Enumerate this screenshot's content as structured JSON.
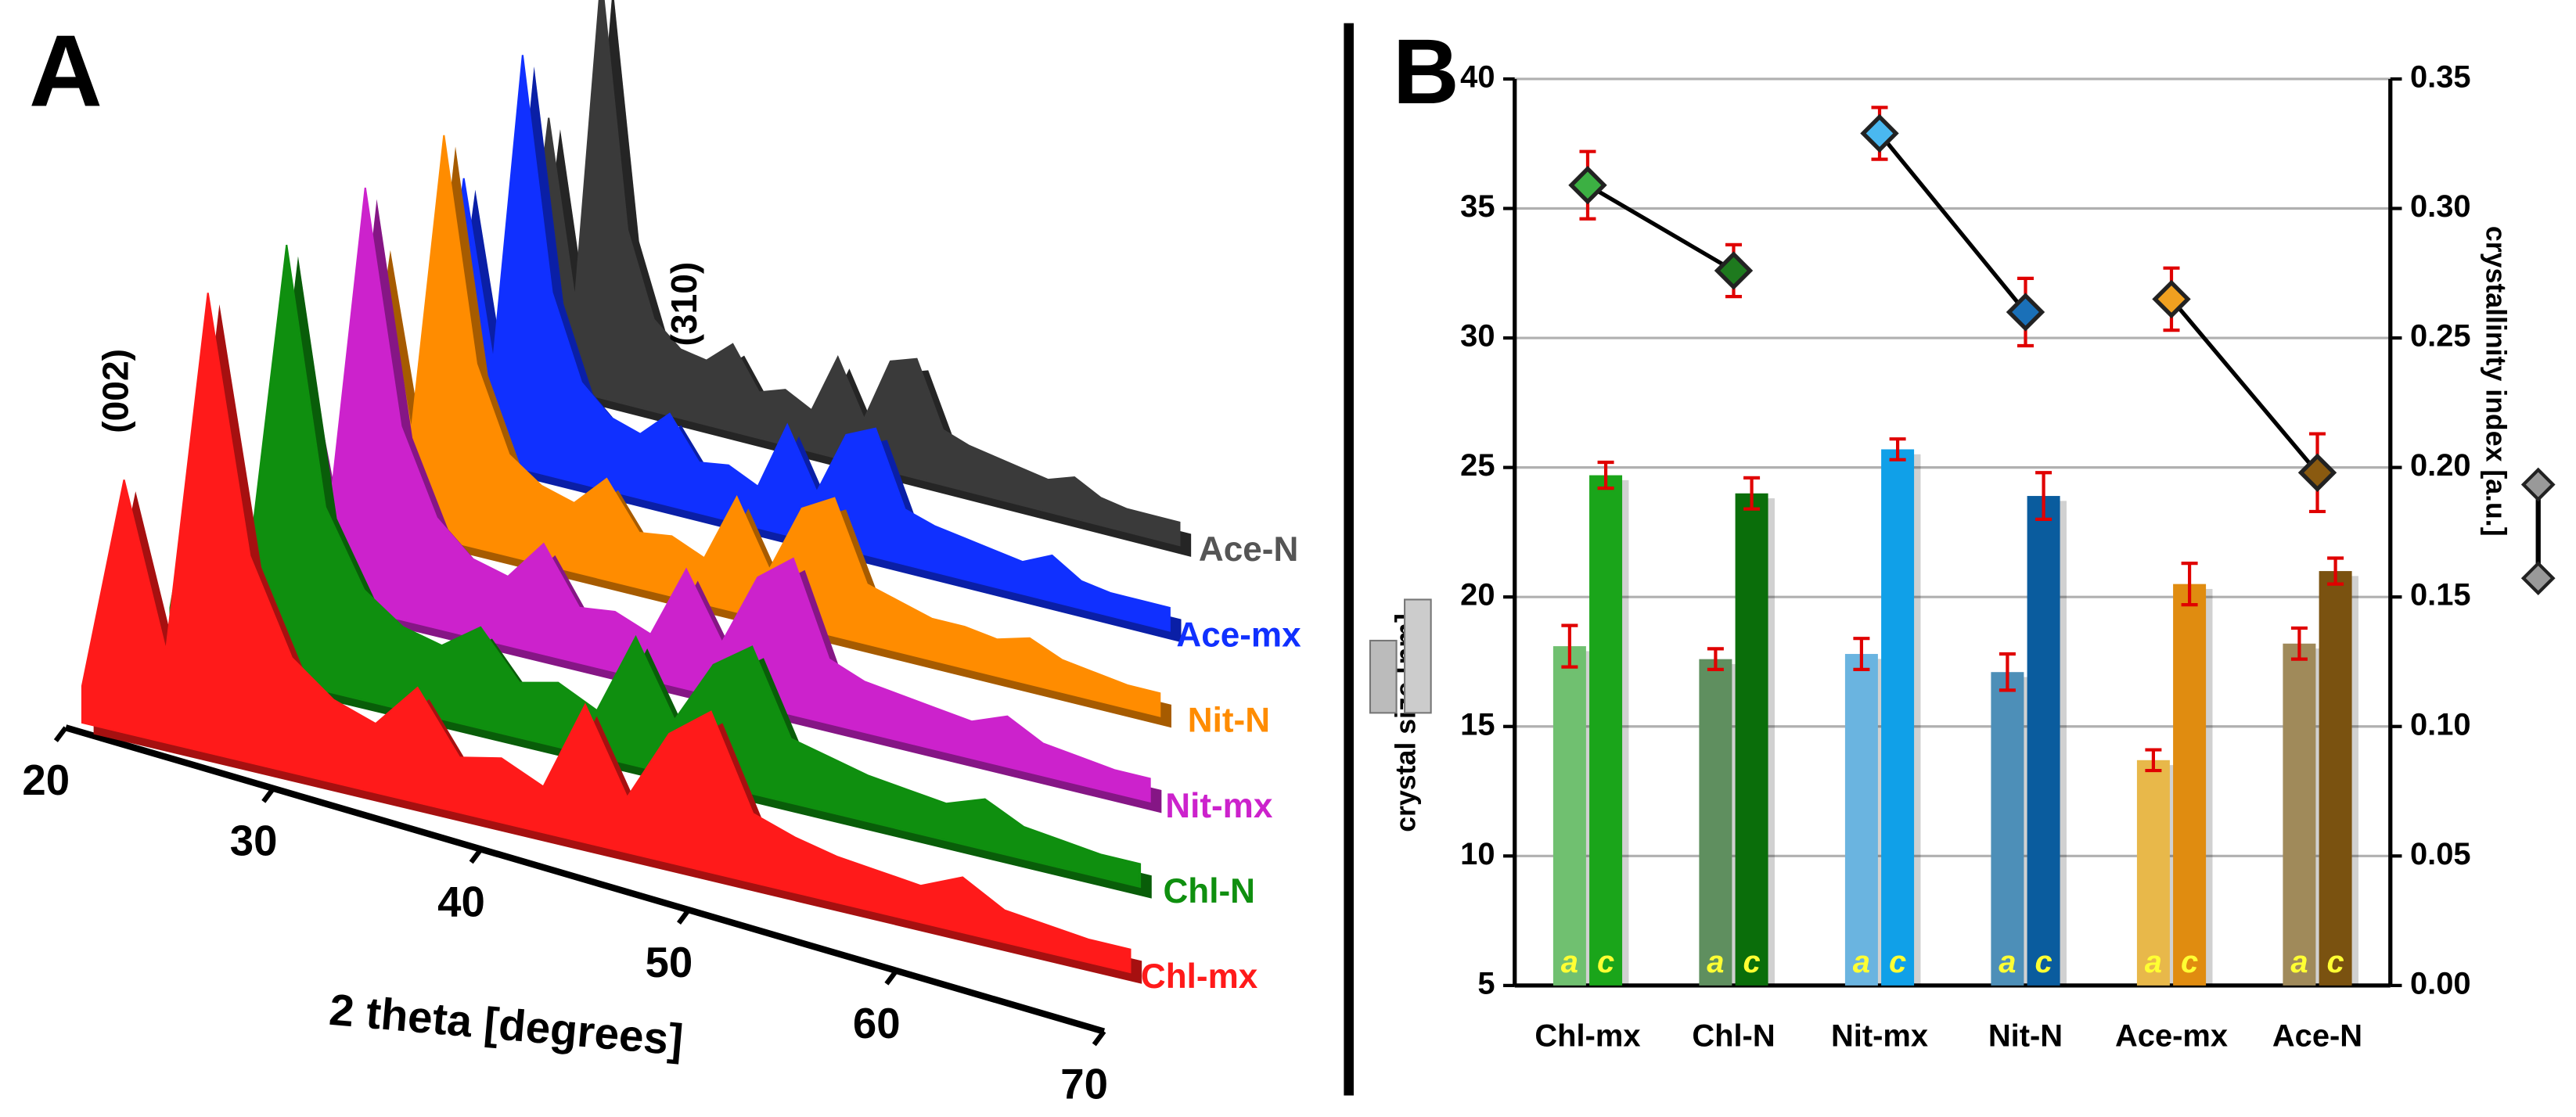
{
  "chart_data": [
    {
      "type": "waterfall",
      "label": "A",
      "xlabel": "2 theta [degrees]",
      "xlim": [
        20,
        70
      ],
      "xticks": [
        20,
        30,
        40,
        50,
        60,
        70
      ],
      "annotations": [
        "(002)",
        "(310)"
      ],
      "x": [
        20,
        22,
        24,
        26,
        28,
        30,
        32,
        34,
        36,
        38,
        40,
        42,
        44,
        46,
        48,
        50,
        52,
        54,
        56,
        58,
        60,
        62,
        64,
        66,
        68,
        70
      ],
      "series": [
        {
          "name": "Chl-mx",
          "color": "#ff1a1a",
          "values": [
            8,
            55,
            20,
            100,
            45,
            25,
            18,
            15,
            25,
            12,
            14,
            10,
            30,
            12,
            28,
            35,
            15,
            12,
            10,
            9,
            8,
            12,
            7,
            6,
            5,
            5
          ]
        },
        {
          "name": "Chl-N",
          "color": "#0f8f0f",
          "values": [
            10,
            60,
            22,
            95,
            40,
            24,
            18,
            16,
            22,
            12,
            14,
            10,
            28,
            12,
            26,
            32,
            14,
            12,
            10,
            9,
            8,
            11,
            7,
            6,
            5,
            5
          ]
        },
        {
          "name": "Nit-mx",
          "color": "#cc22cc",
          "values": [
            10,
            58,
            20,
            92,
            42,
            24,
            17,
            15,
            24,
            12,
            13,
            10,
            26,
            12,
            28,
            34,
            14,
            11,
            10,
            9,
            8,
            11,
            7,
            6,
            5,
            5
          ]
        },
        {
          "name": "Nit-N",
          "color": "#ff8c00",
          "values": [
            10,
            62,
            22,
            88,
            40,
            22,
            17,
            15,
            22,
            12,
            13,
            10,
            25,
            11,
            26,
            30,
            13,
            11,
            9,
            9,
            8,
            10,
            7,
            6,
            5,
            5
          ]
        },
        {
          "name": "Ace-mx",
          "color": "#1030ff",
          "values": [
            10,
            60,
            22,
            90,
            40,
            22,
            16,
            14,
            20,
            11,
            12,
            9,
            24,
            11,
            25,
            28,
            12,
            10,
            9,
            8,
            7,
            10,
            6,
            5,
            5,
            5
          ]
        },
        {
          "name": "Ace-N",
          "color": "#3a3a3a",
          "values": [
            10,
            58,
            20,
            92,
            38,
            20,
            15,
            14,
            19,
            10,
            12,
            9,
            22,
            10,
            24,
            26,
            12,
            10,
            9,
            8,
            7,
            9,
            6,
            5,
            5,
            5
          ]
        }
      ]
    },
    {
      "type": "bar",
      "label": "B",
      "ylabel": "crystal size [nm]",
      "y2label": "crystallinity index [a.u.]",
      "categories": [
        "Chl-mx",
        "Chl-N",
        "Nit-mx",
        "Nit-N",
        "Ace-mx",
        "Ace-N"
      ],
      "ylim": [
        5,
        40
      ],
      "yticks": [
        5,
        10,
        15,
        20,
        25,
        30,
        35,
        40
      ],
      "y2lim": [
        0,
        0.35
      ],
      "y2ticks": [
        {
          "value": 0,
          "label": "0.00"
        },
        {
          "value": 0.05,
          "label": "0.05"
        },
        {
          "value": 0.1,
          "label": "0.10"
        },
        {
          "value": 0.15,
          "label": "0.15"
        },
        {
          "value": 0.2,
          "label": "0.20"
        },
        {
          "value": 0.25,
          "label": "0.25"
        },
        {
          "value": 0.3,
          "label": "0.30"
        },
        {
          "value": 0.35,
          "label": "0.35"
        }
      ],
      "grid": true,
      "error_color": "#e00000",
      "series": [
        {
          "name": "a",
          "values": [
            18.1,
            17.6,
            17.8,
            17.1,
            13.7,
            18.2
          ],
          "errors": [
            0.8,
            0.4,
            0.6,
            0.7,
            0.4,
            0.6
          ],
          "colors": [
            "#70c070",
            "#5f8f5f",
            "#6ab4e0",
            "#4d8fb8",
            "#e8b84a",
            "#a08a5a"
          ]
        },
        {
          "name": "c",
          "values": [
            24.7,
            24.0,
            25.7,
            23.9,
            20.5,
            21.0
          ],
          "errors": [
            0.5,
            0.6,
            0.4,
            0.9,
            0.8,
            0.5
          ],
          "colors": [
            "#1aa51a",
            "#0a6e0a",
            "#10a0e8",
            "#0a5c9e",
            "#e08c10",
            "#7a5210"
          ]
        },
        {
          "type": "line",
          "marker": "diamond",
          "axis": "y2",
          "line_color": "#000000",
          "values": [
            0.309,
            0.276,
            0.329,
            0.26,
            0.265,
            0.198
          ],
          "errors": [
            0.013,
            0.01,
            0.01,
            0.013,
            0.012,
            0.015
          ],
          "colors": [
            "#3cb043",
            "#1e7a1e",
            "#4ab8f0",
            "#1a70b8",
            "#f0a020",
            "#8a5a10"
          ]
        }
      ]
    }
  ]
}
